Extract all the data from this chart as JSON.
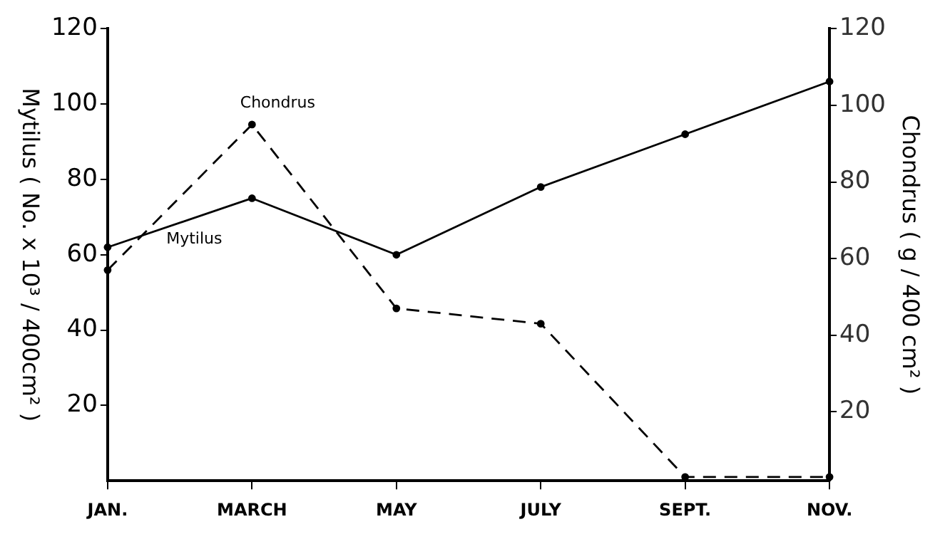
{
  "chart_data": {
    "type": "line",
    "ylabel": "Mytilus ( No. x 10³ / 400cm² )",
    "y2label": "Chondrus ( g / 400 cm² )",
    "categories": [
      "JAN.",
      "MARCH",
      "MAY",
      "JULY",
      "SEPT.",
      "NOV."
    ],
    "series": [
      {
        "name": "Mytilus",
        "color": "#000000",
        "values": [
          62,
          75,
          60,
          78,
          92,
          106
        ],
        "line_style": "solid"
      },
      {
        "name": "Chondrus",
        "color": "#000000",
        "values": [
          57,
          95,
          47,
          43,
          3,
          3
        ],
        "axis": "y2",
        "line_style": "dashed"
      }
    ],
    "ylim": [
      0,
      120
    ],
    "yticks": [
      20,
      40,
      60,
      80,
      100,
      120
    ],
    "y2lim": [
      2,
      120
    ],
    "y2ticks": [
      20,
      40,
      60,
      80,
      100,
      120
    ],
    "grid": false,
    "legend": false,
    "marker": "circle"
  }
}
